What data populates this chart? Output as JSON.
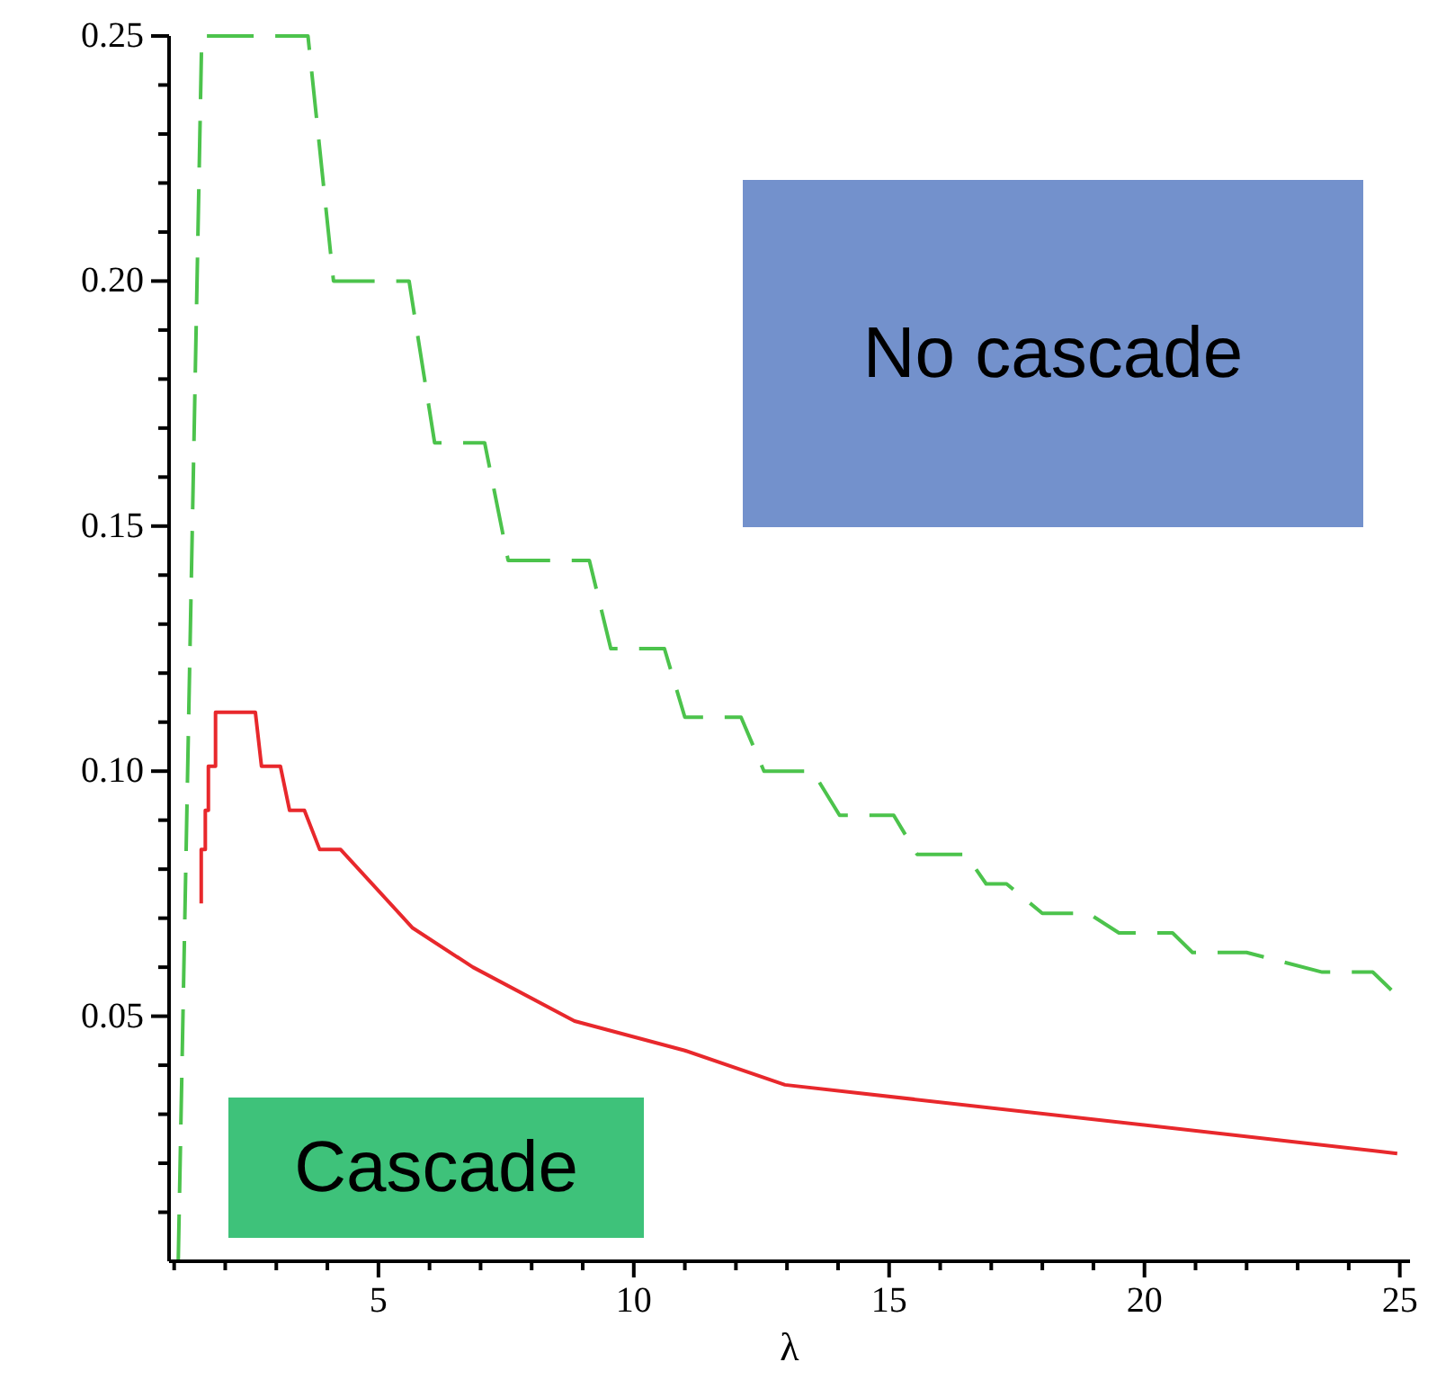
{
  "chart_data": {
    "type": "line",
    "xlabel": "λ",
    "xlim": [
      0.9,
      25.2
    ],
    "ylim": [
      0,
      0.25
    ],
    "xticks": [
      {
        "value": 1,
        "label": null
      },
      {
        "value": 2,
        "label": null
      },
      {
        "value": 3,
        "label": null
      },
      {
        "value": 4,
        "label": null
      },
      5,
      {
        "value": 6,
        "label": null
      },
      {
        "value": 7,
        "label": null
      },
      {
        "value": 8,
        "label": null
      },
      {
        "value": 9,
        "label": null
      },
      10,
      {
        "value": 11,
        "label": null
      },
      {
        "value": 12,
        "label": null
      },
      {
        "value": 13,
        "label": null
      },
      {
        "value": 14,
        "label": null
      },
      15,
      {
        "value": 16,
        "label": null
      },
      {
        "value": 17,
        "label": null
      },
      {
        "value": 18,
        "label": null
      },
      {
        "value": 19,
        "label": null
      },
      20,
      {
        "value": 21,
        "label": null
      },
      {
        "value": 22,
        "label": null
      },
      {
        "value": 23,
        "label": null
      },
      {
        "value": 24,
        "label": null
      },
      25
    ],
    "yticks": [
      {
        "value": 0.01,
        "label": null
      },
      {
        "value": 0.02,
        "label": null
      },
      {
        "value": 0.03,
        "label": null
      },
      {
        "value": 0.04,
        "label": null
      },
      {
        "value": 0.05,
        "label": "0.05"
      },
      {
        "value": 0.06,
        "label": null
      },
      {
        "value": 0.07,
        "label": null
      },
      {
        "value": 0.08,
        "label": null
      },
      {
        "value": 0.09,
        "label": null
      },
      {
        "value": 0.1,
        "label": "0.10"
      },
      {
        "value": 0.11,
        "label": null
      },
      {
        "value": 0.12,
        "label": null
      },
      {
        "value": 0.13,
        "label": null
      },
      {
        "value": 0.14,
        "label": null
      },
      {
        "value": 0.15,
        "label": "0.15"
      },
      {
        "value": 0.16,
        "label": null
      },
      {
        "value": 0.17,
        "label": null
      },
      {
        "value": 0.18,
        "label": null
      },
      {
        "value": 0.19,
        "label": null
      },
      {
        "value": 0.2,
        "label": "0.20"
      },
      {
        "value": 0.21,
        "label": null
      },
      {
        "value": 0.22,
        "label": null
      },
      {
        "value": 0.23,
        "label": null
      },
      {
        "value": 0.24,
        "label": null
      },
      {
        "value": 0.25,
        "label": "0.25"
      }
    ],
    "grid": false,
    "marker": "none",
    "series": [
      {
        "color": "#4cc34c",
        "line_style": "dashed",
        "x": [
          1.08,
          1.54,
          3.62,
          4.12,
          5.6,
          6.1,
          7.08,
          7.54,
          9.13,
          9.55,
          10.6,
          11.0,
          12.1,
          12.55,
          13.5,
          14.03,
          15.09,
          15.55,
          16.5,
          16.9,
          17.3,
          18.0,
          18.9,
          19.5,
          20.55,
          20.94,
          22.0,
          23.48,
          24.47,
          24.97
        ],
        "values": [
          0,
          0.25,
          0.25,
          0.2,
          0.2,
          0.167,
          0.167,
          0.143,
          0.143,
          0.125,
          0.125,
          0.111,
          0.111,
          0.1,
          0.1,
          0.091,
          0.091,
          0.083,
          0.083,
          0.077,
          0.077,
          0.071,
          0.071,
          0.067,
          0.067,
          0.063,
          0.063,
          0.059,
          0.059,
          0.054
        ]
      },
      {
        "color": "#e8282c",
        "line_style": "solid",
        "x": [
          1.53,
          1.53,
          1.61,
          1.61,
          1.67,
          1.67,
          1.81,
          1.81,
          2.59,
          2.71,
          3.08,
          3.26,
          3.55,
          3.85,
          4.26,
          5.67,
          6.85,
          8.84,
          11.0,
          12.96,
          24.95
        ],
        "values": [
          0.073,
          0.084,
          0.084,
          0.092,
          0.092,
          0.101,
          0.101,
          0.112,
          0.112,
          0.101,
          0.101,
          0.092,
          0.092,
          0.084,
          0.084,
          0.068,
          0.06,
          0.049,
          0.043,
          0.036,
          0.022
        ]
      }
    ],
    "annotations": [
      "No cascade",
      "Cascade"
    ]
  }
}
